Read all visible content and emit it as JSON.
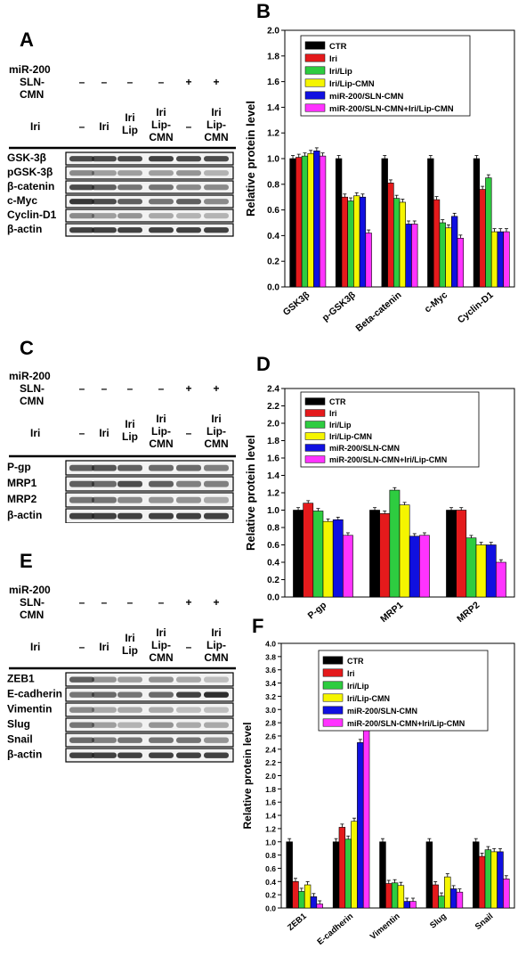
{
  "panels": {
    "A": "A",
    "B": "B",
    "C": "C",
    "D": "D",
    "E": "E",
    "F": "F"
  },
  "blot_labels": {
    "mir": "miR-200",
    "sln": "SLN-",
    "cmn": "CMN",
    "iri": "Iri",
    "dash": "–",
    "plus": "+",
    "iri_word": "Iri",
    "lip_word": "Lip",
    "lipdash": "Lip-",
    "cmn_word": "CMN"
  },
  "blot_A": {
    "proteins": [
      "GSK-3β",
      "pGSK-3β",
      "β-catenin",
      "c-Myc",
      "Cyclin-D1",
      "β-actin"
    ]
  },
  "blot_C": {
    "proteins": [
      "P-gp",
      "MRP1",
      "MRP2",
      "β-actin"
    ]
  },
  "blot_E": {
    "proteins": [
      "ZEB1",
      "E-cadherin",
      "Vimentin",
      "Slug",
      "Snail",
      "β-actin"
    ]
  },
  "legend": [
    "CTR",
    "Iri",
    "Iri/Lip",
    "Iri/Lip-CMN",
    "miR-200/SLN-CMN",
    "miR-200/SLN-CMN+Iri/Lip-CMN"
  ],
  "colors": [
    "#000000",
    "#e41a1c",
    "#2ecc40",
    "#f5f500",
    "#1010e0",
    "#ff33ff"
  ],
  "chart_data": [
    {
      "type": "bar",
      "panel": "B",
      "ylabel": "Relative protein level",
      "ylim": [
        0,
        2.0
      ],
      "yticks": [
        "0.0",
        "0.2",
        "0.4",
        "0.6",
        "0.8",
        "1.0",
        "1.2",
        "1.4",
        "1.6",
        "1.8",
        "2.0"
      ],
      "categories": [
        "GSK3β",
        "p-GSK3β",
        "Beta-catenin",
        "c-Myc",
        "Cyclin-D1"
      ],
      "series": [
        {
          "name": "CTR",
          "values": [
            1.0,
            1.0,
            1.0,
            1.0,
            1.0
          ]
        },
        {
          "name": "Iri",
          "values": [
            1.01,
            0.7,
            0.81,
            0.68,
            0.76
          ]
        },
        {
          "name": "Iri/Lip",
          "values": [
            1.02,
            0.67,
            0.69,
            0.5,
            0.85
          ]
        },
        {
          "name": "Iri/Lip-CMN",
          "values": [
            1.04,
            0.71,
            0.66,
            0.46,
            0.43
          ]
        },
        {
          "name": "miR-200/SLN-CMN",
          "values": [
            1.06,
            0.7,
            0.49,
            0.55,
            0.43
          ]
        },
        {
          "name": "miR-200/SLN-CMN+Iri/Lip-CMN",
          "values": [
            1.02,
            0.42,
            0.49,
            0.38,
            0.43
          ]
        }
      ],
      "legend_position": "top-right"
    },
    {
      "type": "bar",
      "panel": "D",
      "ylabel": "Relative protein level",
      "ylim": [
        0,
        2.4
      ],
      "yticks": [
        "0.0",
        "0.2",
        "0.4",
        "0.6",
        "0.8",
        "1.0",
        "1.2",
        "1.4",
        "1.6",
        "1.8",
        "2.0",
        "2.2",
        "2.4"
      ],
      "categories": [
        "P-gp",
        "MRP1",
        "MRP2"
      ],
      "series": [
        {
          "name": "CTR",
          "values": [
            1.0,
            1.0,
            1.0
          ]
        },
        {
          "name": "Iri",
          "values": [
            1.08,
            0.96,
            1.0
          ]
        },
        {
          "name": "Iri/Lip",
          "values": [
            0.99,
            1.23,
            0.68
          ]
        },
        {
          "name": "Iri/Lip-CMN",
          "values": [
            0.87,
            1.06,
            0.6
          ]
        },
        {
          "name": "miR-200/SLN-CMN",
          "values": [
            0.89,
            0.7,
            0.6
          ]
        },
        {
          "name": "miR-200/SLN-CMN+Iri/Lip-CMN",
          "values": [
            0.71,
            0.71,
            0.4
          ]
        }
      ],
      "legend_position": "top-right"
    },
    {
      "type": "bar",
      "panel": "F",
      "ylabel": "Relative protein level",
      "ylim": [
        0,
        4.0
      ],
      "yticks": [
        "0.0",
        "0.2",
        "0.4",
        "0.6",
        "0.8",
        "1.0",
        "1.2",
        "1.4",
        "1.6",
        "1.8",
        "2.0",
        "2.2",
        "2.4",
        "2.6",
        "2.8",
        "3.0",
        "3.2",
        "3.4",
        "3.6",
        "3.8",
        "4.0"
      ],
      "categories": [
        "ZEB1",
        "E-cadherin",
        "Vimentin",
        "Slug",
        "Snail"
      ],
      "series": [
        {
          "name": "CTR",
          "values": [
            1.0,
            1.0,
            1.0,
            1.0,
            1.0
          ]
        },
        {
          "name": "Iri",
          "values": [
            0.4,
            1.22,
            0.37,
            0.35,
            0.78
          ]
        },
        {
          "name": "Iri/Lip",
          "values": [
            0.25,
            1.04,
            0.38,
            0.18,
            0.88
          ]
        },
        {
          "name": "Iri/Lip-CMN",
          "values": [
            0.35,
            1.31,
            0.34,
            0.47,
            0.85
          ]
        },
        {
          "name": "miR-200/SLN-CMN",
          "values": [
            0.17,
            2.5,
            0.1,
            0.29,
            0.85
          ]
        },
        {
          "name": "miR-200/SLN-CMN+Iri/Lip-CMN",
          "values": [
            0.06,
            3.13,
            0.1,
            0.24,
            0.44
          ]
        }
      ],
      "legend_position": "top-right"
    }
  ]
}
